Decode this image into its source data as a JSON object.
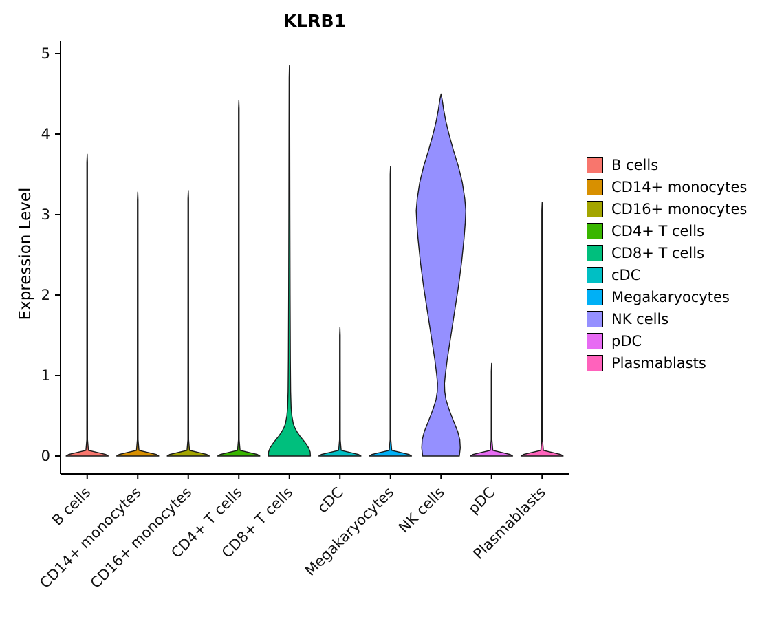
{
  "page": {
    "background": "#ffffff"
  },
  "chart_data": {
    "type": "violin",
    "title": "KLRB1",
    "xlabel": "",
    "ylabel": "Expression Level",
    "ylim": [
      0,
      5
    ],
    "yticks": [
      0,
      1,
      2,
      3,
      4,
      5
    ],
    "grid": false,
    "legend_position": "right",
    "categories": [
      "B cells",
      "CD14+ monocytes",
      "CD16+ monocytes",
      "CD4+ T cells",
      "CD8+ T cells",
      "cDC",
      "Megakaryocytes",
      "NK cells",
      "pDC",
      "Plasmablasts"
    ],
    "series": [
      {
        "name": "B cells",
        "color": "#F8766D",
        "max_expression": 3.75,
        "profile": [
          [
            0,
            0.85
          ],
          [
            0.02,
            0.75
          ],
          [
            0.07,
            0.05
          ],
          [
            0.2,
            0.015
          ],
          [
            3.65,
            0.012
          ],
          [
            3.75,
            0
          ]
        ]
      },
      {
        "name": "CD14+ monocytes",
        "color": "#D89000",
        "max_expression": 3.28,
        "profile": [
          [
            0,
            0.85
          ],
          [
            0.02,
            0.75
          ],
          [
            0.07,
            0.05
          ],
          [
            0.2,
            0.015
          ],
          [
            3.18,
            0.012
          ],
          [
            3.28,
            0
          ]
        ]
      },
      {
        "name": "CD16+ monocytes",
        "color": "#A3A500",
        "max_expression": 3.3,
        "profile": [
          [
            0,
            0.85
          ],
          [
            0.02,
            0.75
          ],
          [
            0.07,
            0.05
          ],
          [
            0.2,
            0.015
          ],
          [
            3.2,
            0.012
          ],
          [
            3.3,
            0
          ]
        ]
      },
      {
        "name": "CD4+ T cells",
        "color": "#39B600",
        "max_expression": 4.42,
        "profile": [
          [
            0,
            0.85
          ],
          [
            0.02,
            0.75
          ],
          [
            0.07,
            0.05
          ],
          [
            0.2,
            0.015
          ],
          [
            4.32,
            0.012
          ],
          [
            4.42,
            0
          ]
        ]
      },
      {
        "name": "CD8+ T cells",
        "color": "#00BF7D",
        "max_expression": 4.85,
        "profile": [
          [
            0,
            0.85
          ],
          [
            0.05,
            0.84
          ],
          [
            0.1,
            0.78
          ],
          [
            0.15,
            0.68
          ],
          [
            0.2,
            0.55
          ],
          [
            0.25,
            0.42
          ],
          [
            0.3,
            0.31
          ],
          [
            0.35,
            0.22
          ],
          [
            0.4,
            0.16
          ],
          [
            0.5,
            0.1
          ],
          [
            0.6,
            0.07
          ],
          [
            0.8,
            0.05
          ],
          [
            1.2,
            0.04
          ],
          [
            2.0,
            0.03
          ],
          [
            3.0,
            0.022
          ],
          [
            4.0,
            0.016
          ],
          [
            4.7,
            0.01
          ],
          [
            4.85,
            0
          ]
        ]
      },
      {
        "name": "cDC",
        "color": "#00BFC4",
        "max_expression": 1.6,
        "profile": [
          [
            0,
            0.85
          ],
          [
            0.02,
            0.75
          ],
          [
            0.07,
            0.05
          ],
          [
            0.2,
            0.015
          ],
          [
            1.5,
            0.012
          ],
          [
            1.6,
            0
          ]
        ]
      },
      {
        "name": "Megakaryocytes",
        "color": "#00B0F6",
        "max_expression": 3.6,
        "profile": [
          [
            0,
            0.85
          ],
          [
            0.02,
            0.75
          ],
          [
            0.07,
            0.05
          ],
          [
            0.2,
            0.015
          ],
          [
            3.5,
            0.012
          ],
          [
            3.6,
            0
          ]
        ]
      },
      {
        "name": "NK cells",
        "color": "#9590FF",
        "max_expression": 4.5,
        "profile": [
          [
            0,
            0.74
          ],
          [
            0.1,
            0.78
          ],
          [
            0.2,
            0.76
          ],
          [
            0.3,
            0.68
          ],
          [
            0.4,
            0.55
          ],
          [
            0.5,
            0.42
          ],
          [
            0.6,
            0.3
          ],
          [
            0.7,
            0.2
          ],
          [
            0.8,
            0.15
          ],
          [
            0.9,
            0.14
          ],
          [
            1.0,
            0.17
          ],
          [
            1.2,
            0.25
          ],
          [
            1.5,
            0.4
          ],
          [
            1.8,
            0.55
          ],
          [
            2.1,
            0.7
          ],
          [
            2.4,
            0.83
          ],
          [
            2.7,
            0.93
          ],
          [
            2.9,
            0.98
          ],
          [
            3.05,
            1.0
          ],
          [
            3.2,
            0.96
          ],
          [
            3.4,
            0.86
          ],
          [
            3.6,
            0.7
          ],
          [
            3.8,
            0.5
          ],
          [
            4.0,
            0.32
          ],
          [
            4.15,
            0.2
          ],
          [
            4.3,
            0.11
          ],
          [
            4.42,
            0.05
          ],
          [
            4.5,
            0
          ]
        ]
      },
      {
        "name": "pDC",
        "color": "#E76BF3",
        "max_expression": 1.15,
        "profile": [
          [
            0,
            0.85
          ],
          [
            0.02,
            0.75
          ],
          [
            0.07,
            0.05
          ],
          [
            0.2,
            0.015
          ],
          [
            1.05,
            0.012
          ],
          [
            1.15,
            0
          ]
        ]
      },
      {
        "name": "Plasmablasts",
        "color": "#FF62BC",
        "max_expression": 3.15,
        "profile": [
          [
            0,
            0.85
          ],
          [
            0.02,
            0.75
          ],
          [
            0.07,
            0.05
          ],
          [
            0.2,
            0.015
          ],
          [
            3.05,
            0.012
          ],
          [
            3.15,
            0
          ]
        ]
      }
    ]
  }
}
